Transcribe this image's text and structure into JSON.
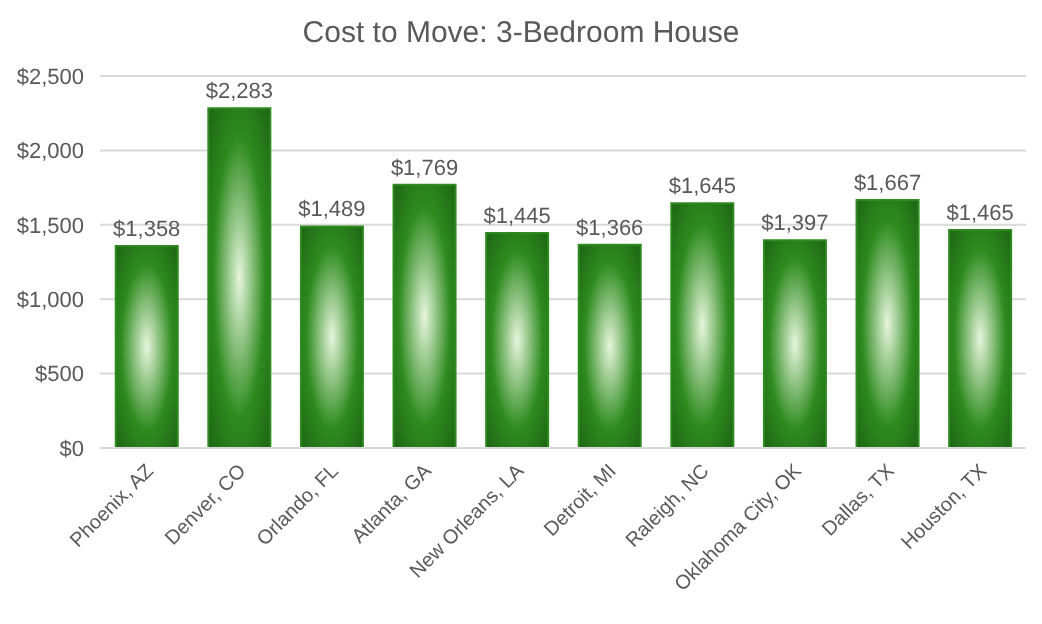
{
  "chart_data": {
    "type": "bar",
    "title": "Cost to Move: 3-Bedroom House",
    "categories": [
      "Phoenix, AZ",
      "Denver, CO",
      "Orlando, FL",
      "Atlanta, GA",
      "New Orleans, LA",
      "Detroit, MI",
      "Raleigh, NC",
      "Oklahoma City, OK",
      "Dallas, TX",
      "Houston, TX"
    ],
    "values": [
      1358,
      2283,
      1489,
      1769,
      1445,
      1366,
      1645,
      1397,
      1667,
      1465
    ],
    "value_labels": [
      "$1,358",
      "$2,283",
      "$1,489",
      "$1,769",
      "$1,445",
      "$1,366",
      "$1,645",
      "$1,397",
      "$1,667",
      "$1,465"
    ],
    "color": "#2e8b1f",
    "ylim": [
      0,
      2500
    ],
    "yticks": [
      {
        "value": 0,
        "label": "$0"
      },
      {
        "value": 500,
        "label": "$500"
      },
      {
        "value": 1000,
        "label": "$1,000"
      },
      {
        "value": 1500,
        "label": "$1,500"
      },
      {
        "value": 2000,
        "label": "$2,000"
      },
      {
        "value": 2500,
        "label": "$2,500"
      }
    ],
    "grid": "y"
  }
}
